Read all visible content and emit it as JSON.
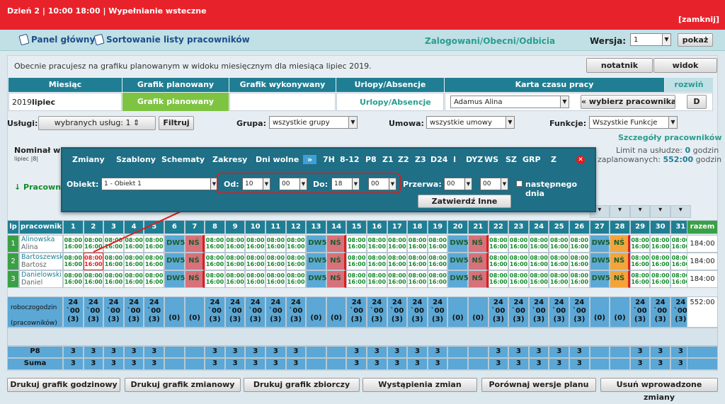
{
  "topbar": {
    "title": "Dzień 2 | 10:00 18:00 | Wypełnianie wsteczne",
    "close": "[zamknij]"
  },
  "nav": {
    "panel": "Panel główny",
    "sort": "Sortowanie listy pracowników",
    "logged": "Zalogowani/Obecni/Odbicia",
    "wersja_label": "Wersja:",
    "wersja_value": "1",
    "show": "pokaż"
  },
  "info": "Obecnie pracujesz na grafiku planowanym w widoku miesięcznym dla miesiąca lipiec 2019.",
  "buttons": {
    "notatnik": "notatnik",
    "widok": "widok",
    "rozwin": "rozwiń",
    "choose_emp": "« wybierz pracownika",
    "d": "D"
  },
  "headers": {
    "miesiac": "Miesiąc",
    "planowany": "Grafik planowany",
    "wykonywany": "Grafik wykonywany",
    "urlopy": "Urlopy/Absencje",
    "karta": "Karta czasu pracy"
  },
  "month": {
    "year": "2019",
    "name": "lipiec",
    "plan_btn": "Grafik planowany",
    "urlopy_link": "Urlopy/Absencje",
    "employee": "Adamus Alina"
  },
  "filters": {
    "uslugi_label": "Usługi:",
    "uslugi_value": "wybranych usług: 1",
    "filtruj": "Filtruj",
    "grupa_label": "Grupa:",
    "grupa_value": "wszystkie grupy",
    "umowa_label": "Umowa:",
    "umowa_value": "wszystkie umowy",
    "funkcje_label": "Funkcje:",
    "funkcje_value": "Wszystkie Funkcje"
  },
  "details": {
    "szczegoly": "Szczegóły pracowników",
    "limit_label": "Limit na usłudze:",
    "limit_value": "0",
    "limit_unit": "godzin",
    "nominal": "Nominał w",
    "planned_label": "zaplanowanych:",
    "planned_value": "552:00",
    "planned_unit": "godzin",
    "lipiec_small": "lipiec |8|",
    "pracownik_short": "↓ Pracowni"
  },
  "popup": {
    "tabs": [
      "Zmiany",
      "Szablony",
      "Schematy",
      "Zakresy",
      "Dni wolne",
      "»",
      "7H",
      "8-12",
      "P8",
      "Z1",
      "Z2",
      "Z3",
      "D24",
      "I",
      "DYZ",
      "WS",
      "SZ",
      "GRP",
      "Z"
    ],
    "obiekt_label": "Obiekt:",
    "obiekt_value": "1 - Obiekt 1",
    "od_label": "Od:",
    "od_h": "10",
    "od_m": "00",
    "do_label": "Do:",
    "do_h": "18",
    "do_m": "00",
    "przerwa_label": "Przerwa:",
    "p_h": "00",
    "p_m": "00",
    "nextday": "następnego dnia",
    "confirm": "Zatwierdź Inne"
  },
  "table": {
    "lp": "lp",
    "pracownik": "pracownik",
    "razem": "razem",
    "days": [
      "1",
      "2",
      "3",
      "4",
      "5",
      "6",
      "7",
      "8",
      "9",
      "10",
      "11",
      "12",
      "13",
      "14",
      "15",
      "16",
      "17",
      "18",
      "19",
      "20",
      "21",
      "22",
      "23",
      "24",
      "25",
      "26",
      "27",
      "28",
      "29",
      "30",
      "31"
    ],
    "employees": [
      {
        "lp": "1",
        "last": "Alinowska",
        "first": "Alina",
        "total": "184:00"
      },
      {
        "lp": "2",
        "last": "Bartoszewski",
        "first": "Bartosz",
        "total": "184:00"
      },
      {
        "lp": "3",
        "last": "Danielowski",
        "first": "Daniel",
        "total": "184:00"
      }
    ],
    "shift_start": "08:00",
    "shift_end": "16:00",
    "red_start": "08:00",
    "red_end": "16:00",
    "dw5": "DW5",
    "ns": "NŚ",
    "robocz": "roboczogodzin",
    "pracow": "(pracowników)",
    "hours": "24",
    "hours_min": "`00",
    "count": "(3)",
    "zero": "(0)",
    "total_hours": "552:00",
    "p8": "P8",
    "suma": "Suma",
    "three": "3"
  },
  "bottom": [
    "Drukuj grafik godzinowy",
    "Drukuj grafik zmianowy",
    "Drukuj grafik zbiorczy",
    "Wystąpienia zmian",
    "Porównaj wersje planu",
    "Usuń wprowadzone zmiany"
  ],
  "colors": {
    "red": "#e8222b",
    "teal": "#1f7e93",
    "green": "#7fc342",
    "blue": "#5ba7d5"
  }
}
